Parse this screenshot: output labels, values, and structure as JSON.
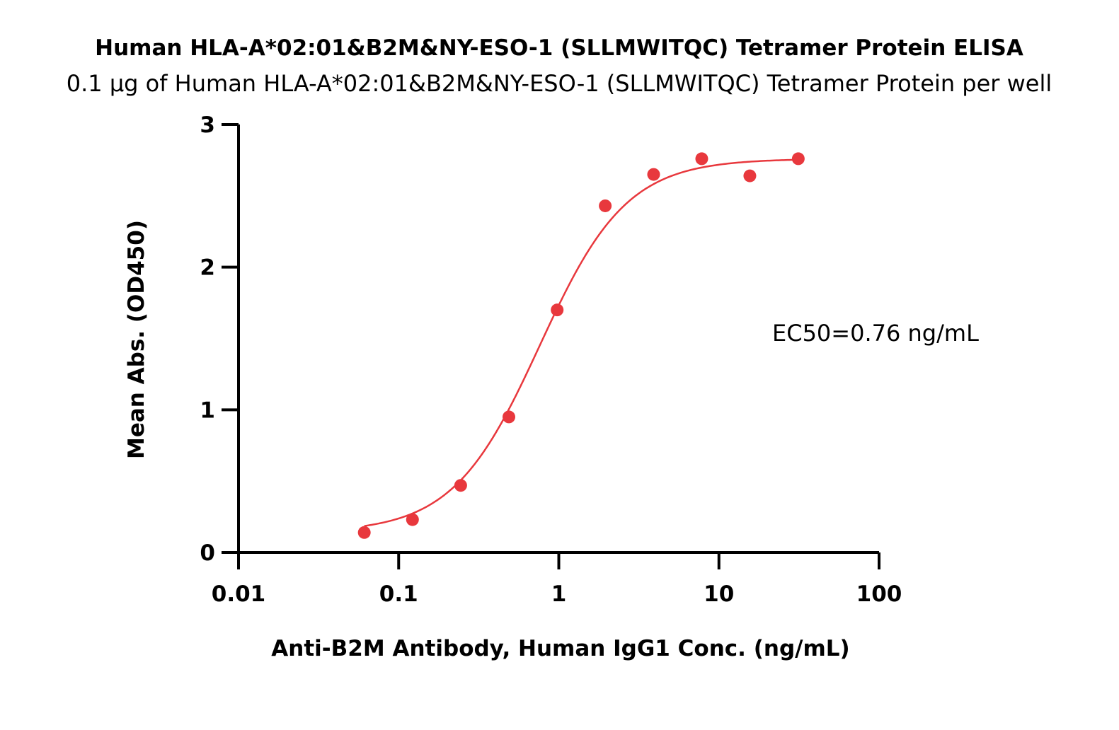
{
  "chart_data": {
    "type": "scatter",
    "title": "Human HLA-A*02:01&B2M&NY-ESO-1 (SLLMWITQC) Tetramer Protein ELISA",
    "subtitle": "0.1 µg of Human HLA-A*02:01&B2M&NY-ESO-1 (SLLMWITQC) Tetramer Protein per well",
    "xlabel": "Anti-B2M Antibody, Human IgG1 Conc. (ng/mL)",
    "ylabel": "Mean Abs. (OD450)",
    "xscale": "log",
    "xlim": [
      0.01,
      100
    ],
    "ylim": [
      0,
      3
    ],
    "xticks": [
      0.01,
      0.1,
      1,
      10,
      100
    ],
    "xtick_labels": [
      "0.01",
      "0.1",
      "1",
      "10",
      "100"
    ],
    "yticks": [
      0,
      1,
      2,
      3
    ],
    "ytick_labels": [
      "0",
      "1",
      "2",
      "3"
    ],
    "grid": false,
    "color": "#e8383d",
    "points": {
      "x": [
        0.061,
        0.122,
        0.244,
        0.488,
        0.977,
        1.95,
        3.91,
        7.81,
        15.6,
        31.3
      ],
      "y": [
        0.14,
        0.23,
        0.47,
        0.95,
        1.7,
        2.43,
        2.65,
        2.76,
        2.64,
        2.76
      ]
    },
    "fit": {
      "model": "4PL",
      "bottom": 0.14,
      "top": 2.76,
      "ec50": 0.76,
      "hill": 1.6,
      "x_range": [
        0.061,
        31.3
      ]
    },
    "annotations": [
      "EC50=0.76 ng/mL"
    ]
  }
}
